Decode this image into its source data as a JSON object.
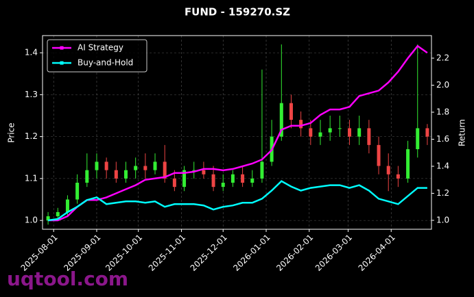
{
  "chart_data": {
    "type": "candlestick",
    "title": "FUND - 159270.SZ",
    "y_label": "Price",
    "y2_label": "Return",
    "watermark": "uqtool.com",
    "x": [
      "2025-07-28",
      "2025-08-04",
      "2025-08-11",
      "2025-08-18",
      "2025-08-25",
      "2025-09-01",
      "2025-09-08",
      "2025-09-15",
      "2025-09-22",
      "2025-09-29",
      "2025-10-06",
      "2025-10-13",
      "2025-10-20",
      "2025-10-27",
      "2025-11-03",
      "2025-11-10",
      "2025-11-17",
      "2025-11-24",
      "2025-12-01",
      "2025-12-08",
      "2025-12-15",
      "2025-12-22",
      "2025-12-29",
      "2026-01-05",
      "2026-01-12",
      "2026-01-19",
      "2026-01-26",
      "2026-02-02",
      "2026-02-09",
      "2026-02-16",
      "2026-02-23",
      "2026-03-02",
      "2026-03-09",
      "2026-03-16",
      "2026-03-23",
      "2026-03-30",
      "2026-04-06",
      "2026-04-13",
      "2026-04-20",
      "2026-04-27"
    ],
    "candles": {
      "up_color": "#33ee33",
      "down_color": "#ee4444",
      "open": [
        1.0,
        1.01,
        1.02,
        1.05,
        1.09,
        1.12,
        1.14,
        1.12,
        1.1,
        1.12,
        1.13,
        1.12,
        1.14,
        1.1,
        1.08,
        1.12,
        1.12,
        1.11,
        1.08,
        1.09,
        1.11,
        1.09,
        1.1,
        1.14,
        1.2,
        1.28,
        1.24,
        1.22,
        1.2,
        1.21,
        1.22,
        1.22,
        1.2,
        1.22,
        1.18,
        1.13,
        1.11,
        1.1,
        1.17,
        1.22
      ],
      "high": [
        1.02,
        1.03,
        1.06,
        1.11,
        1.16,
        1.16,
        1.15,
        1.14,
        1.14,
        1.15,
        1.16,
        1.16,
        1.18,
        1.12,
        1.13,
        1.14,
        1.14,
        1.13,
        1.11,
        1.12,
        1.13,
        1.12,
        1.36,
        1.24,
        1.42,
        1.3,
        1.26,
        1.24,
        1.24,
        1.25,
        1.25,
        1.24,
        1.25,
        1.24,
        1.2,
        1.16,
        1.13,
        1.19,
        1.42,
        1.23
      ],
      "low": [
        0.99,
        1.0,
        1.01,
        1.04,
        1.08,
        1.1,
        1.1,
        1.09,
        1.09,
        1.1,
        1.1,
        1.11,
        1.09,
        1.07,
        1.07,
        1.1,
        1.1,
        1.07,
        1.07,
        1.08,
        1.08,
        1.08,
        1.09,
        1.13,
        1.19,
        1.22,
        1.2,
        1.18,
        1.18,
        1.19,
        1.2,
        1.18,
        1.18,
        1.16,
        1.11,
        1.07,
        1.08,
        1.09,
        1.15,
        1.18
      ],
      "close": [
        1.01,
        1.02,
        1.05,
        1.09,
        1.12,
        1.14,
        1.12,
        1.1,
        1.12,
        1.13,
        1.12,
        1.14,
        1.1,
        1.08,
        1.12,
        1.12,
        1.11,
        1.08,
        1.09,
        1.11,
        1.09,
        1.1,
        1.14,
        1.2,
        1.28,
        1.24,
        1.22,
        1.2,
        1.21,
        1.22,
        1.22,
        1.2,
        1.22,
        1.18,
        1.13,
        1.11,
        1.1,
        1.17,
        1.22,
        1.2
      ]
    },
    "series": [
      {
        "name": "AI Strategy",
        "color": "#ff00ff",
        "axis": "y2",
        "values": [
          1.0,
          1.0,
          1.03,
          1.1,
          1.15,
          1.15,
          1.17,
          1.2,
          1.23,
          1.26,
          1.3,
          1.31,
          1.32,
          1.35,
          1.35,
          1.36,
          1.38,
          1.38,
          1.37,
          1.38,
          1.4,
          1.42,
          1.45,
          1.52,
          1.67,
          1.7,
          1.7,
          1.72,
          1.78,
          1.82,
          1.82,
          1.84,
          1.92,
          1.94,
          1.96,
          2.02,
          2.1,
          2.2,
          2.29,
          2.24
        ]
      },
      {
        "name": "Buy-and-Hold",
        "color": "#00ffff",
        "axis": "y2",
        "values": [
          1.0,
          1.01,
          1.06,
          1.1,
          1.15,
          1.17,
          1.12,
          1.13,
          1.14,
          1.14,
          1.13,
          1.14,
          1.1,
          1.12,
          1.12,
          1.12,
          1.11,
          1.08,
          1.1,
          1.11,
          1.13,
          1.13,
          1.16,
          1.22,
          1.29,
          1.25,
          1.22,
          1.24,
          1.25,
          1.26,
          1.26,
          1.24,
          1.26,
          1.22,
          1.16,
          1.14,
          1.12,
          1.18,
          1.24,
          1.24
        ]
      }
    ],
    "xlim": [
      "2025-07-24",
      "2026-04-30"
    ],
    "xticks": [
      "2025-08-01",
      "2025-09-01",
      "2025-10-01",
      "2025-11-01",
      "2025-12-01",
      "2026-01-01",
      "2026-02-01",
      "2026-03-01",
      "2026-04-01"
    ],
    "ylim": [
      0.979,
      1.441
    ],
    "yticks": [
      {
        "value": 1,
        "label": "1.0"
      },
      1.1,
      1.2,
      1.3,
      1.4
    ],
    "y2lim": [
      0.934,
      2.367
    ],
    "y2ticks": [
      {
        "value": 1,
        "label": "1.0"
      },
      1.2,
      1.4,
      1.6,
      1.8,
      {
        "value": 2,
        "label": "2.0"
      },
      2.2
    ],
    "grid": true,
    "legend": "upper left"
  }
}
